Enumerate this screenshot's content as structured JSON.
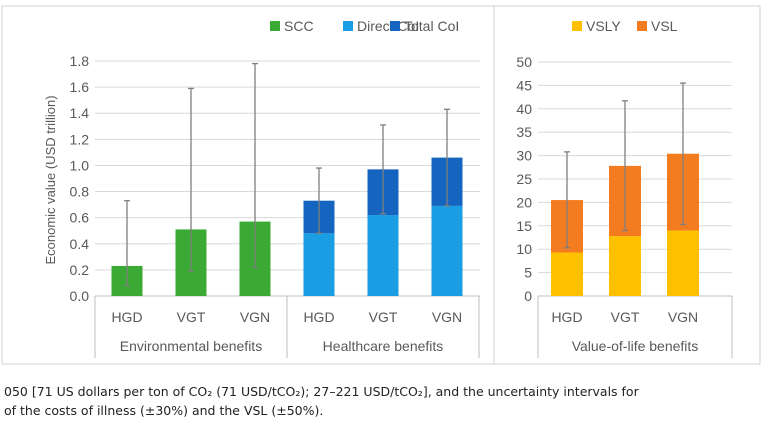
{
  "chart_data": [
    {
      "type": "bar",
      "stacked": true,
      "legend_position": "top-right",
      "ylabel": "Economic value (USD trillion)",
      "ylim": [
        0,
        1.8
      ],
      "yticks": [
        "0.0",
        "0.2",
        "0.4",
        "0.6",
        "0.8",
        "1.0",
        "1.2",
        "1.4",
        "1.6",
        "1.8"
      ],
      "grid": true,
      "categories": [
        "HGD",
        "VGT",
        "VGN",
        "HGD",
        "VGT",
        "VGN"
      ],
      "groups": [
        "Environmental benefits",
        "Healthcare benefits"
      ],
      "legend": [
        {
          "name": "SCC",
          "color": "#3aaa35"
        },
        {
          "name": "Direct CoI",
          "color": "#1a9de2"
        },
        {
          "name": "Total CoI",
          "color": "#1565c0"
        }
      ],
      "bars": [
        {
          "category": "HGD",
          "group": "Environmental benefits",
          "segments": [
            {
              "series": "SCC",
              "value": 0.23
            }
          ],
          "error": [
            0.08,
            0.73
          ]
        },
        {
          "category": "VGT",
          "group": "Environmental benefits",
          "segments": [
            {
              "series": "SCC",
              "value": 0.51
            }
          ],
          "error": [
            0.19,
            1.59
          ]
        },
        {
          "category": "VGN",
          "group": "Environmental benefits",
          "segments": [
            {
              "series": "SCC",
              "value": 0.57
            }
          ],
          "error": [
            0.22,
            1.78
          ]
        },
        {
          "category": "HGD",
          "group": "Healthcare benefits",
          "segments": [
            {
              "series": "Direct CoI",
              "value": 0.48
            },
            {
              "series": "Total CoI",
              "value": 0.25
            }
          ],
          "error": [
            0.48,
            0.98
          ]
        },
        {
          "category": "VGT",
          "group": "Healthcare benefits",
          "segments": [
            {
              "series": "Direct CoI",
              "value": 0.62
            },
            {
              "series": "Total CoI",
              "value": 0.35
            }
          ],
          "error": [
            0.63,
            1.31
          ]
        },
        {
          "category": "VGN",
          "group": "Healthcare benefits",
          "segments": [
            {
              "series": "Direct CoI",
              "value": 0.69
            },
            {
              "series": "Total CoI",
              "value": 0.37
            }
          ],
          "error": [
            0.69,
            1.43
          ]
        }
      ]
    },
    {
      "type": "bar",
      "stacked": true,
      "legend_position": "top",
      "ylim": [
        0,
        50
      ],
      "yticks": [
        "0",
        "5",
        "10",
        "15",
        "20",
        "25",
        "30",
        "35",
        "40",
        "45",
        "50"
      ],
      "grid": true,
      "categories": [
        "HGD",
        "VGT",
        "VGN"
      ],
      "groups": [
        "Value-of-life benefits"
      ],
      "legend": [
        {
          "name": "VSLY",
          "color": "#ffc000"
        },
        {
          "name": "VSL",
          "color": "#f47c20"
        }
      ],
      "bars": [
        {
          "category": "HGD",
          "group": "Value-of-life benefits",
          "segments": [
            {
              "series": "VSLY",
              "value": 9.3
            },
            {
              "series": "VSL",
              "value": 11.2
            }
          ],
          "error": [
            10.3,
            30.8
          ]
        },
        {
          "category": "VGT",
          "group": "Value-of-life benefits",
          "segments": [
            {
              "series": "VSLY",
              "value": 12.8
            },
            {
              "series": "VSL",
              "value": 15.0
            }
          ],
          "error": [
            14.0,
            41.7
          ]
        },
        {
          "category": "VGN",
          "group": "Value-of-life benefits",
          "segments": [
            {
              "series": "VSLY",
              "value": 14.0
            },
            {
              "series": "VSL",
              "value": 16.4
            }
          ],
          "error": [
            15.3,
            45.5
          ]
        }
      ]
    }
  ],
  "caption": {
    "line1": "050 [71 US dollars per ton of CO₂ (71 USD/tCO₂); 27–221 USD/tCO₂], and the uncertainty intervals for",
    "line2": "of the costs of illness (±30%) and the VSL (±50%)."
  }
}
